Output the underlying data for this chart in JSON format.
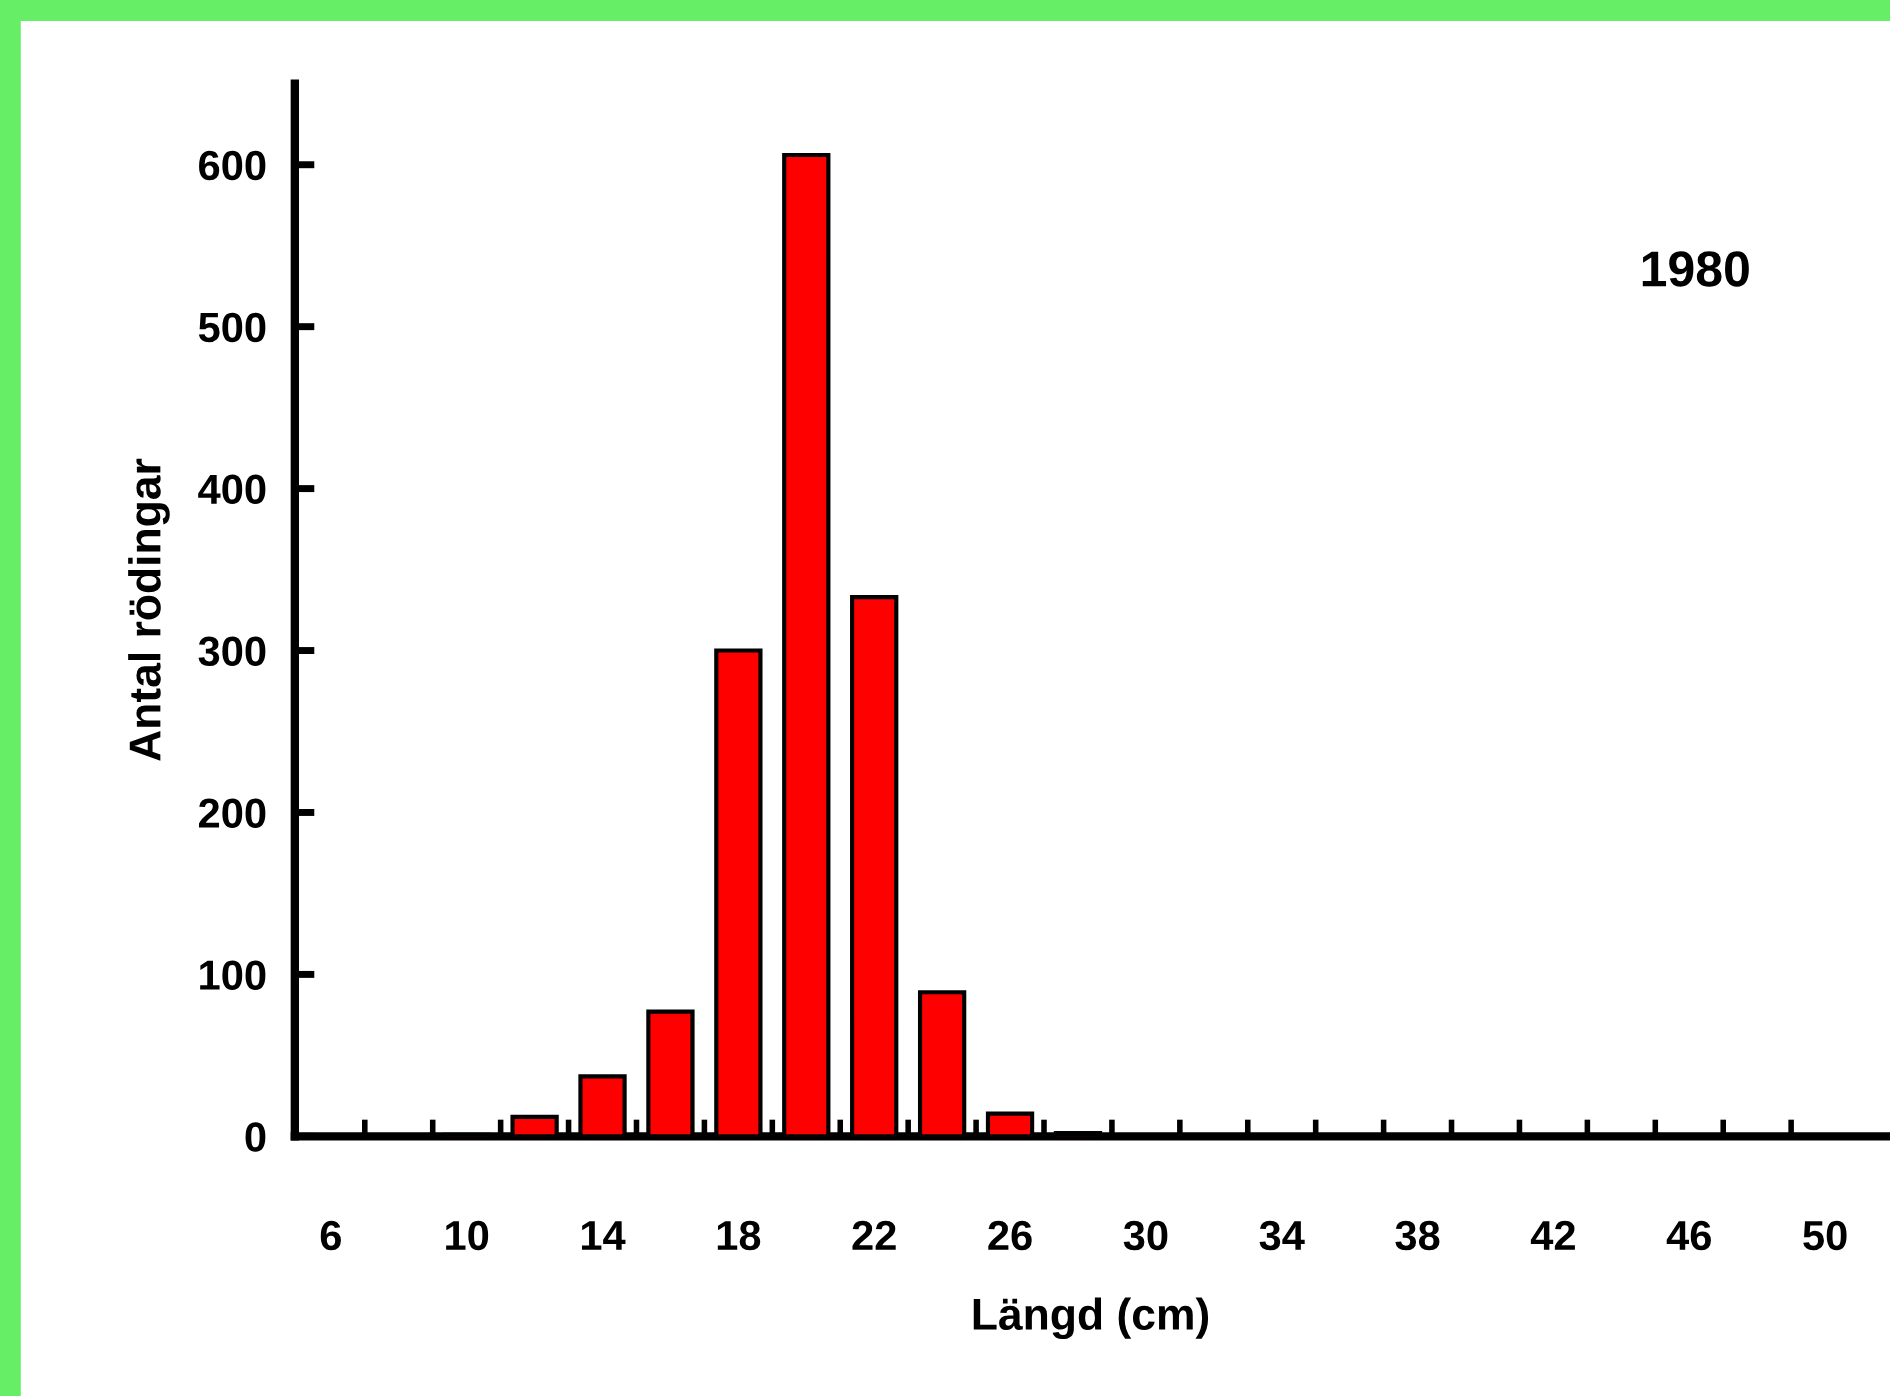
{
  "chart_data": {
    "type": "bar",
    "xlabel": "Längd (cm)",
    "ylabel": "Antal rödingar",
    "annotations": [
      "1980"
    ],
    "categories": [
      "6",
      null,
      "10",
      null,
      "14",
      null,
      "18",
      null,
      "22",
      null,
      "26",
      null,
      "30",
      null,
      "34",
      null,
      "38",
      null,
      "42",
      null,
      "46",
      null,
      "50"
    ],
    "values": [
      0,
      0,
      1,
      12,
      37,
      77,
      300,
      606,
      333,
      89,
      14,
      2,
      0,
      0,
      0,
      0,
      0,
      0,
      0,
      0,
      0,
      0,
      0
    ],
    "color": "#ff0000",
    "ylim": [
      0,
      650
    ],
    "yticks": [
      0,
      100,
      200,
      300,
      400,
      500,
      600
    ],
    "grid": false
  }
}
